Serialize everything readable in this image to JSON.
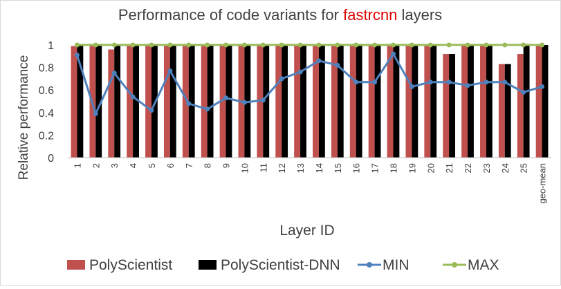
{
  "chart_data": {
    "type": "bar",
    "title_prefix": "Performance of code variants for ",
    "title_highlight": "fastrcnn",
    "title_suffix": " layers",
    "xlabel": "Layer ID",
    "ylabel": "Relative performance",
    "ylim": [
      0,
      1
    ],
    "yticks": [
      "0",
      "0.2",
      "0.4",
      "0.6",
      "0.8",
      "1"
    ],
    "grid": false,
    "legend_position": "bottom",
    "categories": [
      "1",
      "2",
      "3",
      "4",
      "5",
      "6",
      "7",
      "8",
      "9",
      "10",
      "11",
      "12",
      "13",
      "14",
      "15",
      "16",
      "17",
      "18",
      "19",
      "20",
      "21",
      "22",
      "23",
      "24",
      "25",
      "geo-mean"
    ],
    "series": [
      {
        "name": "PolyScientist",
        "kind": "bar",
        "color": "#c0504d",
        "values": [
          0.99,
          0.99,
          0.96,
          0.99,
          0.99,
          0.99,
          0.99,
          0.99,
          0.99,
          0.99,
          0.99,
          0.99,
          0.99,
          0.99,
          0.99,
          0.99,
          0.99,
          0.99,
          0.99,
          0.99,
          0.92,
          0.99,
          0.99,
          0.83,
          0.92,
          0.99
        ]
      },
      {
        "name": "PolyScientist-DNN",
        "kind": "bar",
        "color": "#000000",
        "values": [
          1,
          1,
          1,
          1,
          1,
          1,
          1,
          1,
          1,
          1,
          1,
          1,
          1,
          1,
          1,
          1,
          1,
          1,
          1,
          1,
          0.92,
          1,
          1,
          0.83,
          1,
          1
        ]
      },
      {
        "name": "MIN",
        "kind": "line",
        "color": "#4f81bd",
        "values": [
          0.91,
          0.39,
          0.75,
          0.54,
          0.42,
          0.77,
          0.48,
          0.43,
          0.53,
          0.49,
          0.51,
          0.7,
          0.76,
          0.86,
          0.82,
          0.67,
          0.67,
          0.92,
          0.63,
          0.67,
          0.67,
          0.64,
          0.67,
          0.67,
          0.58,
          0.63
        ]
      },
      {
        "name": "MAX",
        "kind": "line",
        "color": "#9bbb59",
        "values": [
          1,
          1,
          1,
          1,
          1,
          1,
          1,
          1,
          1,
          1,
          1,
          1,
          1,
          1,
          1,
          1,
          1,
          1,
          1,
          1,
          1,
          1,
          1,
          1,
          1,
          1
        ]
      }
    ]
  }
}
